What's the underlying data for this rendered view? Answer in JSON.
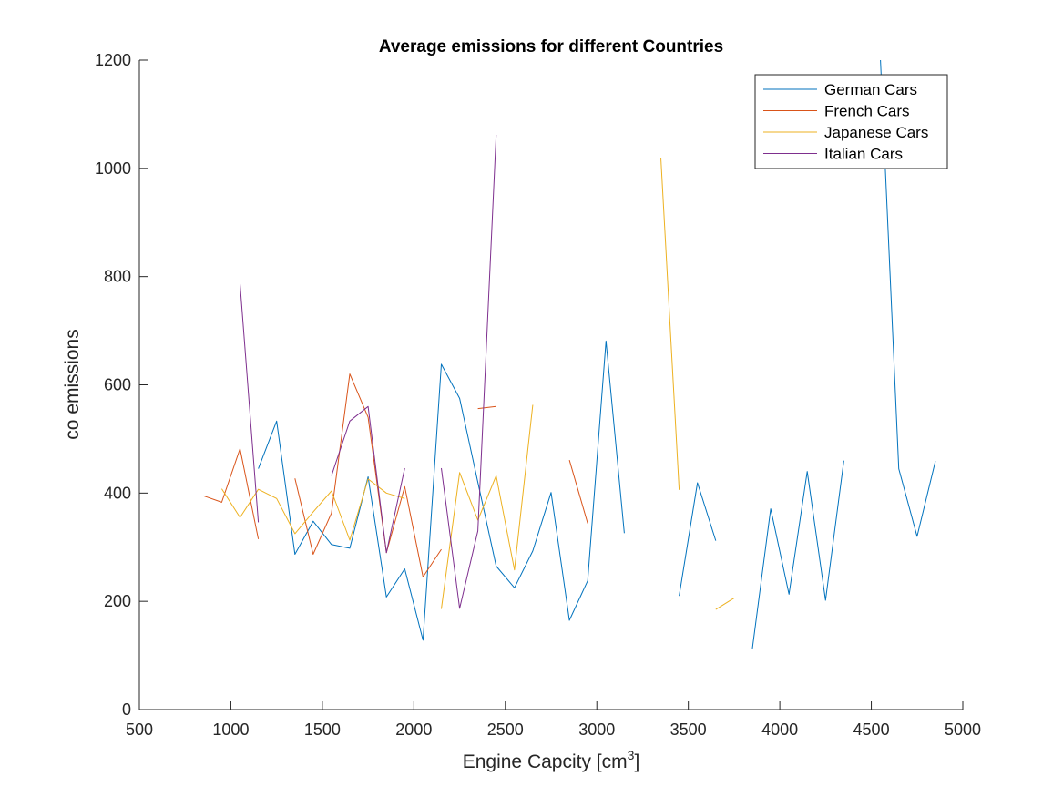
{
  "chart_data": {
    "type": "line",
    "title": "Average emissions for different Countries",
    "xlabel": "Engine Capcity [cm",
    "xlabel_superscript": "3",
    "xlabel_suffix": "]",
    "ylabel": "co emissions",
    "xlim": [
      500,
      5000
    ],
    "ylim": [
      0,
      1200
    ],
    "xticks": [
      500,
      1000,
      1500,
      2000,
      2500,
      3000,
      3500,
      4000,
      4500,
      5000
    ],
    "yticks": [
      0,
      200,
      400,
      600,
      800,
      1000,
      1200
    ],
    "grid": false,
    "legend_position": "top-right",
    "series": [
      {
        "name": "German Cars",
        "color": "#0072BD",
        "segments": [
          [
            [
              1150,
              445
            ],
            [
              1250,
              533
            ],
            [
              1350,
              287
            ],
            [
              1450,
              348
            ],
            [
              1550,
              305
            ],
            [
              1650,
              298
            ],
            [
              1750,
              430
            ],
            [
              1850,
              208
            ],
            [
              1950,
              260
            ],
            [
              2050,
              128
            ],
            [
              2150,
              638
            ],
            [
              2250,
              575
            ],
            [
              2350,
              420
            ],
            [
              2450,
              265
            ],
            [
              2550,
              225
            ],
            [
              2650,
              293
            ],
            [
              2750,
              401
            ],
            [
              2850,
              165
            ],
            [
              2950,
              238
            ],
            [
              3050,
              681
            ],
            [
              3150,
              326
            ]
          ],
          [
            [
              3450,
              210
            ],
            [
              3550,
              419
            ],
            [
              3650,
              312
            ]
          ],
          [
            [
              3850,
              113
            ],
            [
              3950,
              371
            ],
            [
              4050,
              213
            ],
            [
              4150,
              440
            ],
            [
              4250,
              202
            ],
            [
              4350,
              460
            ]
          ],
          [
            [
              4550,
              1200
            ],
            [
              4650,
              445
            ],
            [
              4750,
              320
            ],
            [
              4850,
              459
            ]
          ]
        ]
      },
      {
        "name": "French Cars",
        "color": "#D95319",
        "segments": [
          [
            [
              850,
              395
            ],
            [
              950,
              383
            ],
            [
              1050,
              482
            ],
            [
              1150,
              315
            ]
          ],
          [
            [
              1350,
              427
            ],
            [
              1450,
              287
            ],
            [
              1550,
              363
            ],
            [
              1650,
              620
            ],
            [
              1750,
              540
            ],
            [
              1850,
              290
            ],
            [
              1950,
              412
            ],
            [
              2050,
              245
            ],
            [
              2150,
              296
            ]
          ],
          [
            [
              2350,
              556
            ],
            [
              2450,
              560
            ]
          ],
          [
            [
              2850,
              461
            ],
            [
              2950,
              344
            ]
          ]
        ]
      },
      {
        "name": "Japanese Cars",
        "color": "#EDB120",
        "segments": [
          [
            [
              950,
              408
            ],
            [
              1050,
              355
            ],
            [
              1150,
              407
            ],
            [
              1250,
              390
            ],
            [
              1350,
              325
            ],
            [
              1450,
              365
            ],
            [
              1550,
              404
            ],
            [
              1650,
              313
            ],
            [
              1750,
              426
            ],
            [
              1850,
              400
            ],
            [
              1950,
              390
            ]
          ],
          [
            [
              2150,
              186
            ],
            [
              2250,
              438
            ],
            [
              2350,
              350
            ],
            [
              2450,
              432
            ],
            [
              2550,
              258
            ],
            [
              2650,
              563
            ]
          ],
          [
            [
              3350,
              1020
            ],
            [
              3450,
              406
            ]
          ],
          [
            [
              3650,
              185
            ],
            [
              3750,
              206
            ]
          ]
        ]
      },
      {
        "name": "Italian Cars",
        "color": "#7E2F8E",
        "segments": [
          [
            [
              1050,
              787
            ],
            [
              1150,
              346
            ]
          ],
          [
            [
              1550,
              432
            ],
            [
              1650,
              533
            ],
            [
              1750,
              560
            ],
            [
              1850,
              290
            ],
            [
              1950,
              446
            ]
          ],
          [
            [
              2150,
              446
            ],
            [
              2250,
              187
            ],
            [
              2350,
              330
            ],
            [
              2450,
              1062
            ]
          ]
        ]
      }
    ]
  }
}
